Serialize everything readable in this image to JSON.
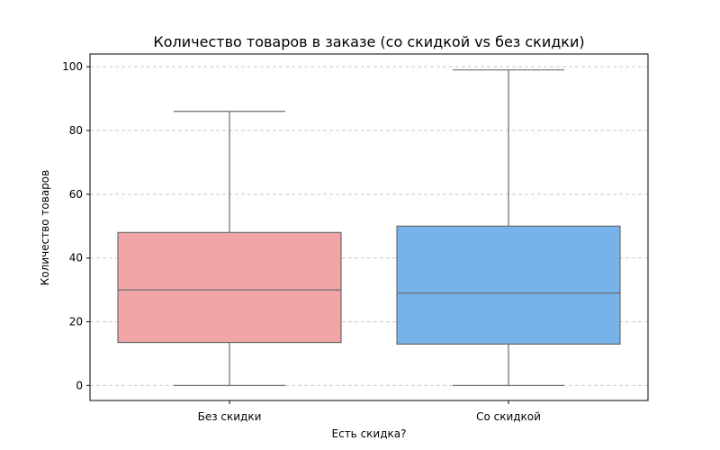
{
  "chart_data": {
    "type": "box",
    "title": "Количество товаров в заказе (со скидкой vs без скидки)",
    "xlabel": "Есть скидка?",
    "ylabel": "Количество товаров",
    "categories": [
      "Без скидки",
      "Со скидкой"
    ],
    "boxes": [
      {
        "category": "Без скидки",
        "whisker_low": 0,
        "q1": 13.5,
        "median": 30,
        "q3": 48,
        "whisker_high": 86,
        "color": "#f2a5a6"
      },
      {
        "category": "Со скидкой",
        "whisker_low": 0,
        "q1": 13,
        "median": 29,
        "q3": 50,
        "whisker_high": 99,
        "color": "#77b3ea"
      }
    ],
    "ylim": [
      -4.7,
      104
    ],
    "yticks": [
      0,
      20,
      40,
      60,
      80,
      100
    ],
    "grid": "y-dashed",
    "colors": {
      "box_edge": "#6b6b6b",
      "grid": "#c8c8c8"
    }
  }
}
